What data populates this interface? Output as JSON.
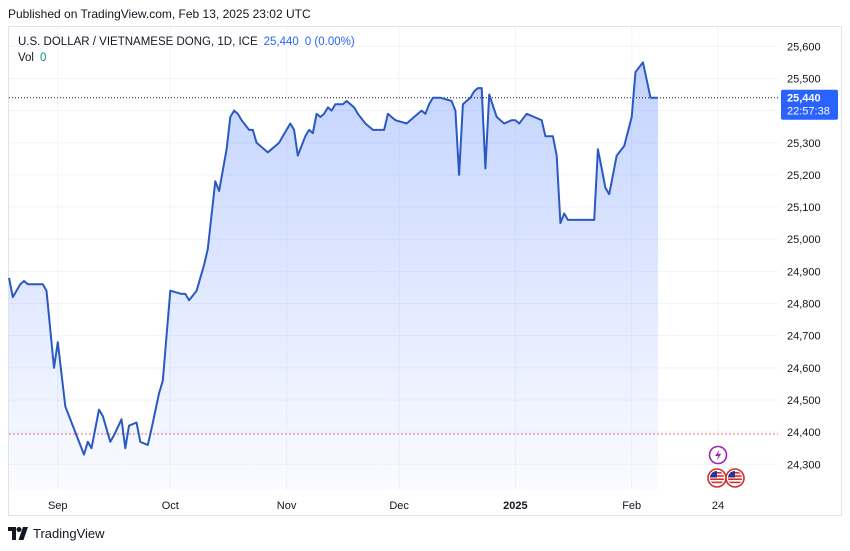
{
  "header": {
    "published": "Published on TradingView.com, Feb 13, 2025 23:02 UTC"
  },
  "legend": {
    "symbol": "U.S. DOLLAR / VIETNAMESE DONG, 1D, ICE",
    "last": "25,440",
    "change": "0 (0.00%)",
    "vol_label": "Vol",
    "vol_value": "0"
  },
  "price_label": {
    "price": "25,440",
    "countdown": "22:57:38"
  },
  "footer": {
    "brand": "TradingView"
  },
  "colors": {
    "line": "#2b59c3",
    "label_bg": "#2962ff",
    "ref_line": "#e57373"
  },
  "chart_data": {
    "type": "area",
    "title": "U.S. DOLLAR / VIETNAMESE DONG, 1D, ICE",
    "ylim": [
      24220,
      25660
    ],
    "y_ticks": [
      "25,600",
      "25,500",
      "25,400",
      "25,300",
      "25,200",
      "25,100",
      "25,000",
      "24,900",
      "24,800",
      "24,700",
      "24,600",
      "24,500",
      "24,400",
      "24,300"
    ],
    "y_tick_values": [
      25600,
      25500,
      25400,
      25300,
      25200,
      25100,
      25000,
      24900,
      24800,
      24700,
      24600,
      24500,
      24400,
      24300
    ],
    "x_ticks": [
      {
        "label": "Sep",
        "day": 13,
        "bold": false
      },
      {
        "label": "Oct",
        "day": 43,
        "bold": false
      },
      {
        "label": "Nov",
        "day": 74,
        "bold": false
      },
      {
        "label": "Dec",
        "day": 104,
        "bold": false
      },
      {
        "label": "2025",
        "day": 135,
        "bold": true
      },
      {
        "label": "Feb",
        "day": 166,
        "bold": false
      },
      {
        "label": "24",
        "day": 189,
        "bold": false
      }
    ],
    "xlim": [
      0,
      205
    ],
    "reference_price": 24394,
    "last_price": 25440,
    "series": [
      {
        "points": [
          [
            0,
            24880
          ],
          [
            1,
            24820
          ],
          [
            3,
            24860
          ],
          [
            4,
            24870
          ],
          [
            5,
            24860
          ],
          [
            9,
            24860
          ],
          [
            10,
            24840
          ],
          [
            12,
            24600
          ],
          [
            13,
            24680
          ],
          [
            15,
            24480
          ],
          [
            20,
            24330
          ],
          [
            21,
            24370
          ],
          [
            22,
            24350
          ],
          [
            24,
            24470
          ],
          [
            25,
            24450
          ],
          [
            27,
            24370
          ],
          [
            28,
            24390
          ],
          [
            30,
            24440
          ],
          [
            31,
            24350
          ],
          [
            32,
            24420
          ],
          [
            34,
            24430
          ],
          [
            35,
            24370
          ],
          [
            37,
            24360
          ],
          [
            38,
            24410
          ],
          [
            40,
            24520
          ],
          [
            41,
            24560
          ],
          [
            43,
            24840
          ],
          [
            46,
            24830
          ],
          [
            47,
            24830
          ],
          [
            48,
            24810
          ],
          [
            50,
            24840
          ],
          [
            52,
            24920
          ],
          [
            53,
            24970
          ],
          [
            55,
            25180
          ],
          [
            56,
            25150
          ],
          [
            58,
            25280
          ],
          [
            59,
            25380
          ],
          [
            60,
            25400
          ],
          [
            61,
            25390
          ],
          [
            62,
            25370
          ],
          [
            64,
            25340
          ],
          [
            65,
            25340
          ],
          [
            66,
            25300
          ],
          [
            69,
            25270
          ],
          [
            70,
            25280
          ],
          [
            72,
            25300
          ],
          [
            73,
            25320
          ],
          [
            75,
            25360
          ],
          [
            76,
            25340
          ],
          [
            77,
            25260
          ],
          [
            79,
            25320
          ],
          [
            80,
            25340
          ],
          [
            81,
            25330
          ],
          [
            82,
            25390
          ],
          [
            83,
            25380
          ],
          [
            84,
            25390
          ],
          [
            85,
            25410
          ],
          [
            86,
            25400
          ],
          [
            87,
            25420
          ],
          [
            89,
            25420
          ],
          [
            90,
            25430
          ],
          [
            91,
            25420
          ],
          [
            92,
            25410
          ],
          [
            93,
            25390
          ],
          [
            95,
            25360
          ],
          [
            97,
            25340
          ],
          [
            100,
            25340
          ],
          [
            101,
            25390
          ],
          [
            102,
            25380
          ],
          [
            103,
            25370
          ],
          [
            106,
            25360
          ],
          [
            107,
            25370
          ],
          [
            108,
            25380
          ],
          [
            110,
            25400
          ],
          [
            111,
            25390
          ],
          [
            112,
            25420
          ],
          [
            113,
            25440
          ],
          [
            115,
            25440
          ],
          [
            118,
            25430
          ],
          [
            119,
            25400
          ],
          [
            120,
            25200
          ],
          [
            121,
            25420
          ],
          [
            122,
            25430
          ],
          [
            123,
            25440
          ],
          [
            124,
            25460
          ],
          [
            125,
            25470
          ],
          [
            126,
            25470
          ],
          [
            127,
            25220
          ],
          [
            128,
            25450
          ],
          [
            130,
            25380
          ],
          [
            132,
            25360
          ],
          [
            134,
            25370
          ],
          [
            135,
            25370
          ],
          [
            136,
            25360
          ],
          [
            138,
            25390
          ],
          [
            140,
            25380
          ],
          [
            142,
            25370
          ],
          [
            143,
            25320
          ],
          [
            145,
            25320
          ],
          [
            146,
            25260
          ],
          [
            147,
            25050
          ],
          [
            148,
            25080
          ],
          [
            149,
            25060
          ],
          [
            153,
            25060
          ],
          [
            155,
            25060
          ],
          [
            156,
            25060
          ],
          [
            157,
            25280
          ],
          [
            158,
            25220
          ],
          [
            159,
            25160
          ],
          [
            160,
            25140
          ],
          [
            162,
            25260
          ],
          [
            164,
            25290
          ],
          [
            166,
            25380
          ],
          [
            167,
            25520
          ],
          [
            169,
            25550
          ],
          [
            171,
            25440
          ],
          [
            173,
            25440
          ]
        ]
      }
    ]
  }
}
